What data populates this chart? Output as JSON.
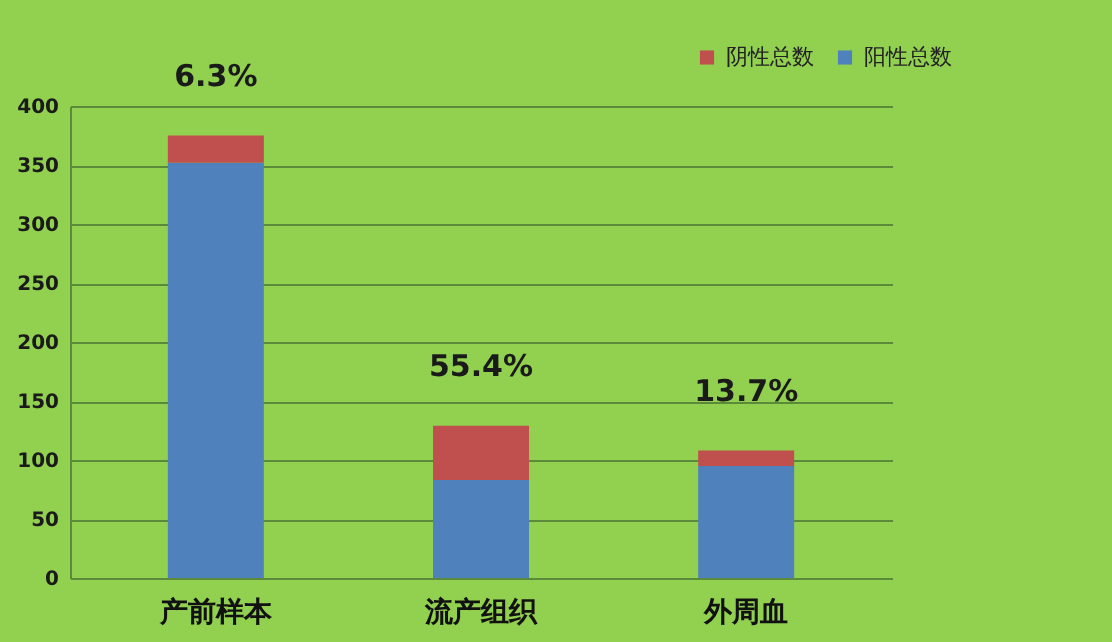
{
  "chart_data": {
    "type": "bar",
    "stacked": true,
    "categories": [
      "产前样本",
      "流产组织",
      "外周血"
    ],
    "series": [
      {
        "name": "阳性总数",
        "color": "#4f81bd",
        "values": [
          352,
          83,
          95
        ]
      },
      {
        "name": "阴性总数",
        "color": "#c0504d",
        "values": [
          23,
          46,
          13
        ]
      }
    ],
    "ylim": [
      0,
      400
    ],
    "yticks": [
      0,
      50,
      100,
      150,
      200,
      250,
      300,
      350,
      400
    ],
    "grid": "y",
    "legend": "top right",
    "annotations": [
      {
        "text": "6.3%",
        "x": "产前样本",
        "y": 375
      },
      {
        "text": "55.4%",
        "x": "流产组织",
        "y": 129
      },
      {
        "text": "13.7%",
        "x": "外周血",
        "y": 108
      }
    ]
  }
}
